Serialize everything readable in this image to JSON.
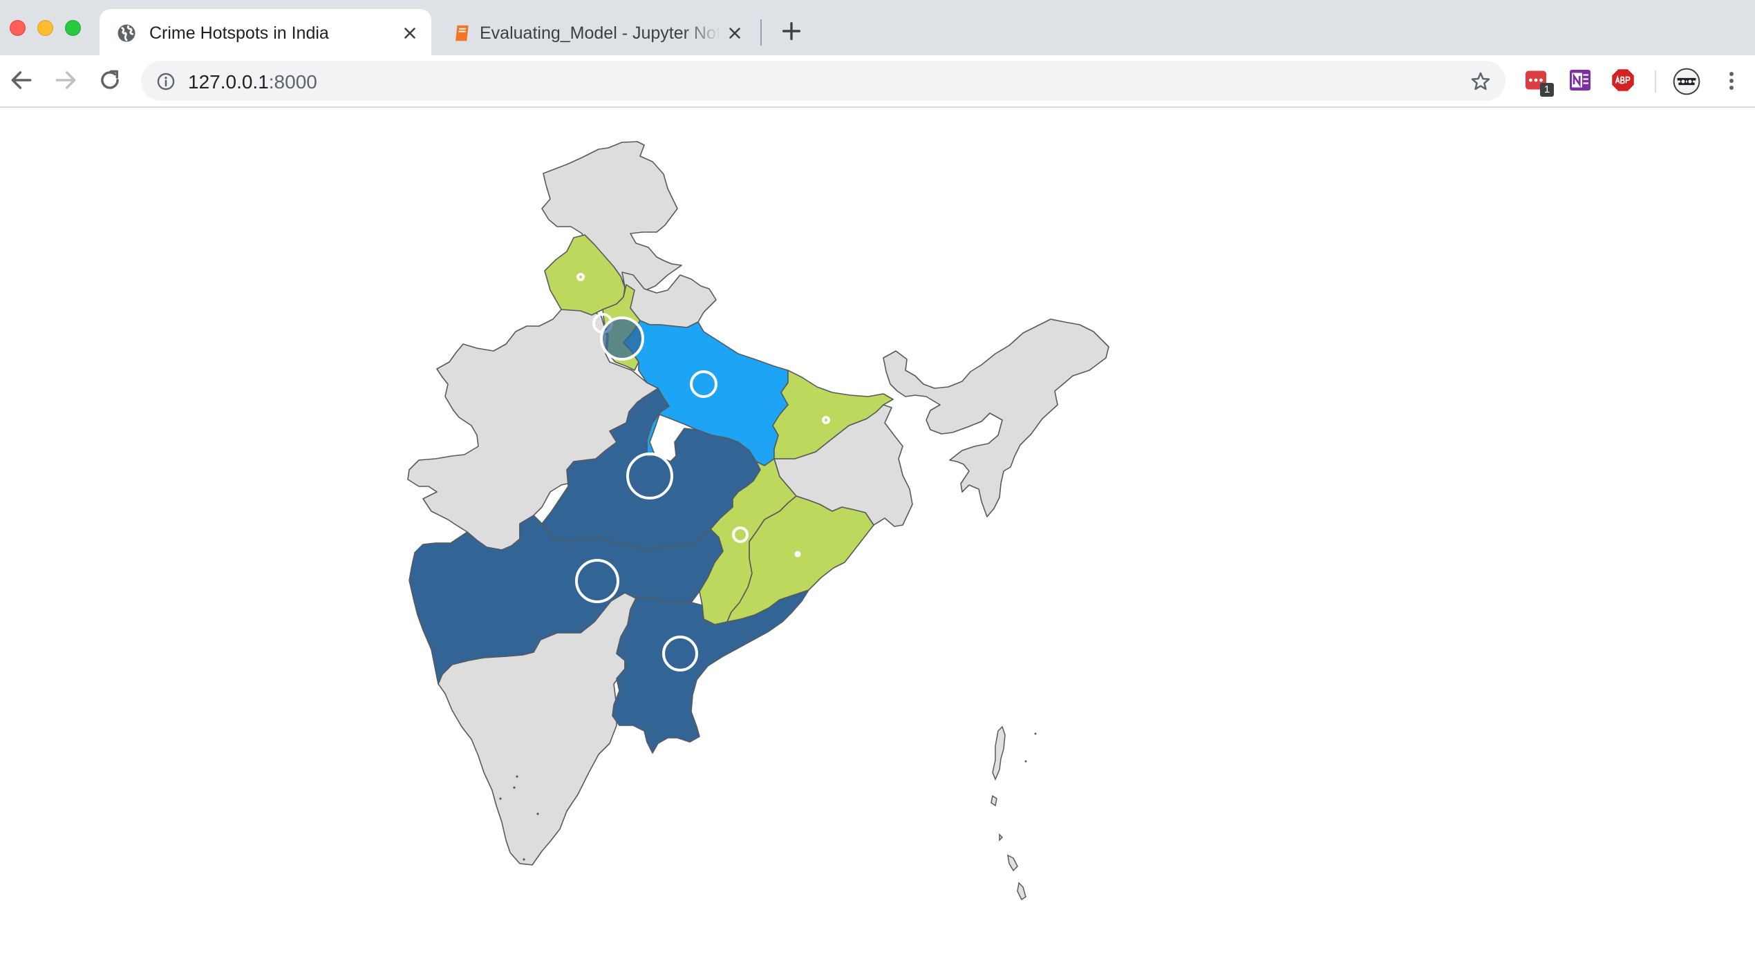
{
  "window": {
    "tabs": [
      {
        "title": "Crime Hotspots in India",
        "favicon": "globe-icon",
        "active": true
      },
      {
        "title": "Evaluating_Model - Jupyter Notebook",
        "favicon": "notebook-icon",
        "active": false
      }
    ]
  },
  "toolbar": {
    "url_host": "127.0.0.1",
    "url_port": ":8000",
    "extension_badge": "1"
  },
  "map": {
    "colors": {
      "base": "#dddddd",
      "low": "#bcd85d",
      "high": "#1ea4f5",
      "highest": "#326595",
      "hotspot_ring": "#ffffff"
    },
    "regions": [
      {
        "id": "punjab",
        "level": "low"
      },
      {
        "id": "haryana",
        "level": "low"
      },
      {
        "id": "uttar-pradesh",
        "level": "high"
      },
      {
        "id": "bihar",
        "level": "low"
      },
      {
        "id": "madhya-pradesh",
        "level": "highest"
      },
      {
        "id": "maharashtra",
        "level": "highest"
      },
      {
        "id": "telangana-andhra",
        "level": "highest"
      },
      {
        "id": "chhattisgarh",
        "level": "low"
      },
      {
        "id": "odisha",
        "level": "low"
      }
    ]
  }
}
